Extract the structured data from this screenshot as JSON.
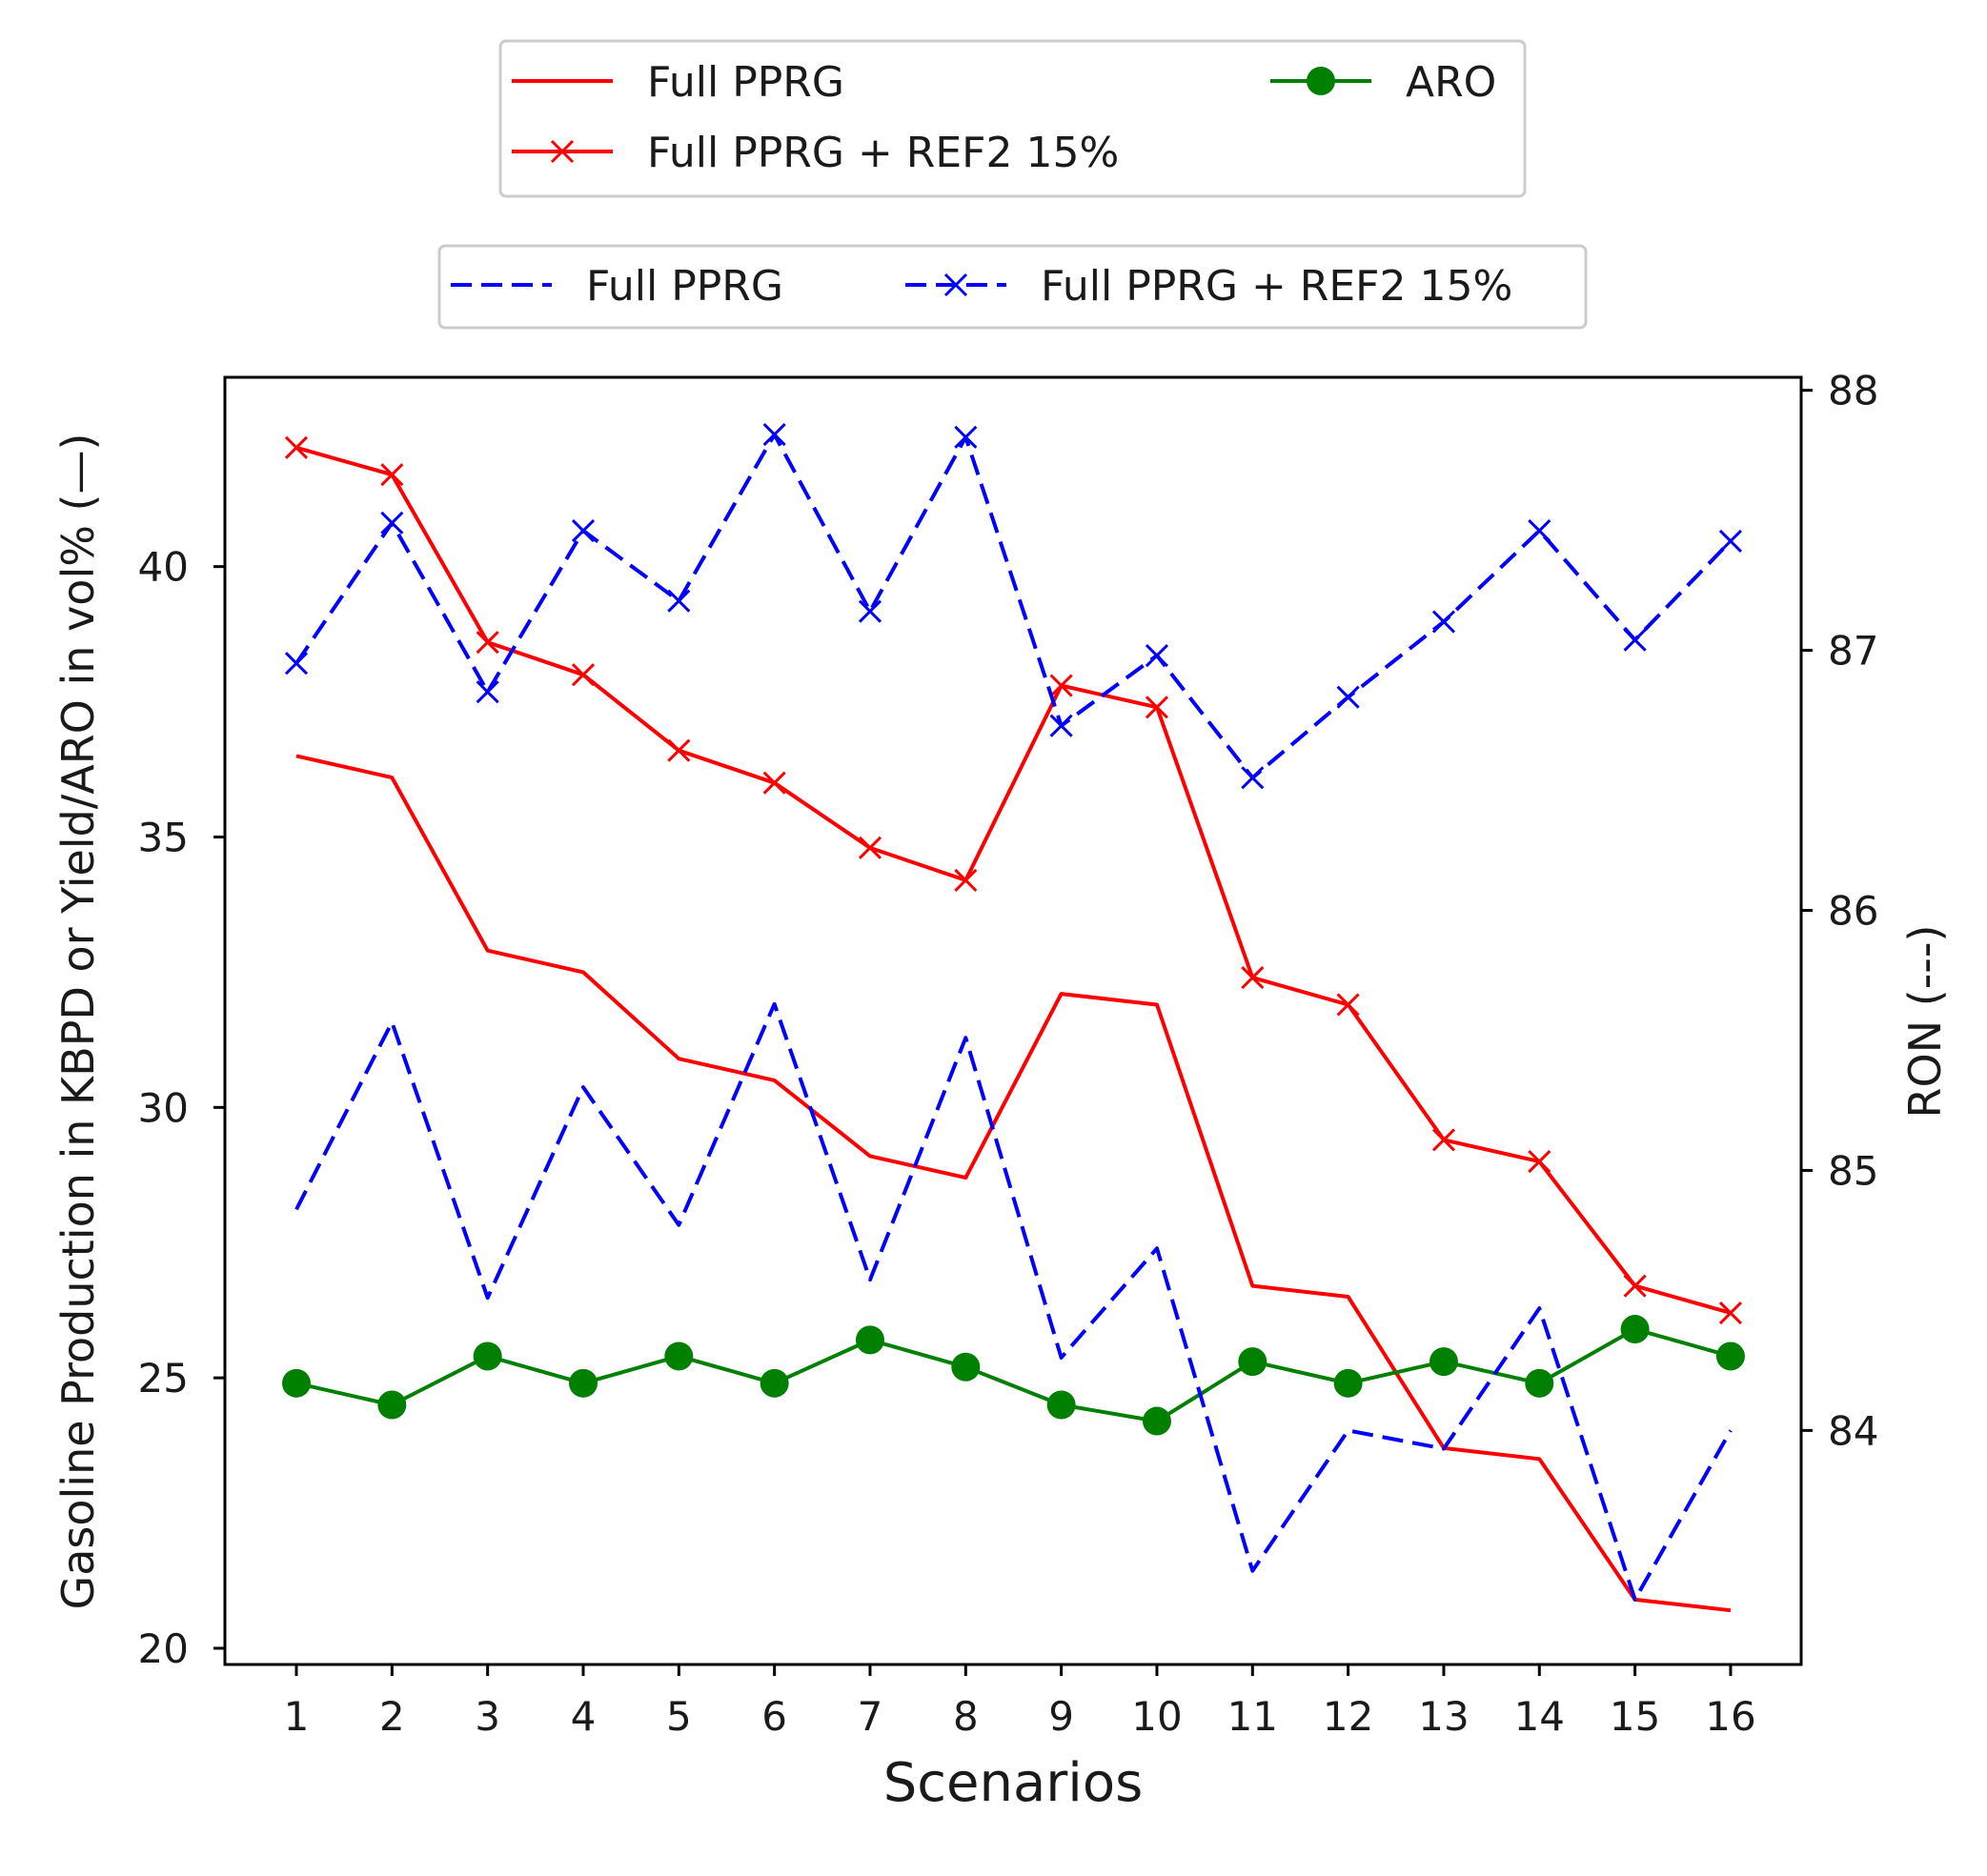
{
  "chart_data": {
    "type": "line",
    "title": "",
    "xlabel": "Scenarios",
    "ylabel_left": "Gasoline Production in KBPD or Yield/ARO in vol% (—)",
    "ylabel_right": "RON (---)",
    "categories": [
      1,
      2,
      3,
      4,
      5,
      6,
      7,
      8,
      9,
      10,
      11,
      12,
      13,
      14,
      15,
      16
    ],
    "x_tick_labels": [
      "1",
      "2",
      "3",
      "4",
      "5",
      "6",
      "7",
      "8",
      "9",
      "10",
      "11",
      "12",
      "13",
      "14",
      "15",
      "16"
    ],
    "ylim_left": [
      19.7,
      43.5
    ],
    "yticks_left": [
      20,
      25,
      30,
      35,
      40
    ],
    "ylim_right": [
      83.1,
      88.05
    ],
    "yticks_right": [
      84,
      85,
      86,
      87,
      88
    ],
    "grid": false,
    "series": [
      {
        "name": "Full PPRG",
        "axis": "left",
        "color": "#ff0000",
        "style": "solid",
        "marker": "none",
        "values": [
          36.5,
          36.1,
          32.9,
          32.5,
          30.9,
          30.5,
          29.1,
          28.7,
          32.1,
          31.9,
          26.7,
          26.5,
          23.7,
          23.5,
          20.9,
          20.7
        ]
      },
      {
        "name": "Full PPRG + REF2 15%",
        "axis": "left",
        "color": "#ff0000",
        "style": "solid",
        "marker": "x",
        "values": [
          42.2,
          41.7,
          38.6,
          38.0,
          36.6,
          36.0,
          34.8,
          34.2,
          37.8,
          37.4,
          32.4,
          31.9,
          29.4,
          29.0,
          26.7,
          26.2
        ]
      },
      {
        "name": "ARO",
        "axis": "left",
        "color": "#008000",
        "style": "solid",
        "marker": "o",
        "values": [
          24.9,
          24.5,
          25.4,
          24.9,
          25.4,
          24.9,
          25.7,
          25.2,
          24.5,
          24.2,
          25.3,
          24.9,
          25.3,
          24.9,
          25.9,
          25.4
        ]
      },
      {
        "name": "Full PPRG",
        "axis": "right",
        "color": "#0000ff",
        "style": "dashed",
        "marker": "none",
        "values": [
          84.85,
          85.57,
          84.51,
          85.32,
          84.79,
          85.64,
          84.58,
          85.51,
          84.28,
          84.7,
          83.46,
          84.0,
          83.93,
          84.47,
          83.35,
          84.0
        ]
      },
      {
        "name": "Full PPRG + REF2 15%",
        "axis": "right",
        "color": "#0000ff",
        "style": "dashed",
        "marker": "x",
        "values": [
          86.95,
          87.49,
          86.84,
          87.46,
          87.19,
          87.83,
          87.15,
          87.82,
          86.71,
          86.98,
          86.51,
          86.82,
          87.11,
          87.46,
          87.04,
          87.42
        ]
      }
    ],
    "legend_top": {
      "placement": "top-center",
      "entries": [
        {
          "label": "Full PPRG",
          "color": "#ff0000",
          "style": "solid",
          "marker": "none"
        },
        {
          "label": "Full PPRG + REF2 15%",
          "color": "#ff0000",
          "style": "solid",
          "marker": "x"
        },
        {
          "label": "ARO",
          "color": "#008000",
          "style": "solid",
          "marker": "o"
        }
      ]
    },
    "legend_bottom": {
      "placement": "top-center",
      "entries": [
        {
          "label": "Full PPRG",
          "color": "#0000ff",
          "style": "dashed",
          "marker": "none"
        },
        {
          "label": "Full PPRG + REF2 15%",
          "color": "#0000ff",
          "style": "dashed",
          "marker": "x"
        }
      ]
    }
  }
}
